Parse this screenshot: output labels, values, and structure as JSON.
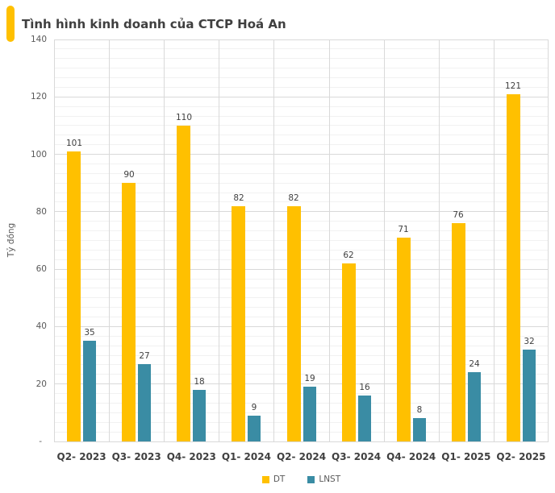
{
  "header": {
    "title": "Tình hình kinh doanh của CTCP Hoá An",
    "accent_color": "#FFC000"
  },
  "chart_data": {
    "type": "bar",
    "title": "Tình hình kinh doanh của CTCP Hoá An",
    "xlabel": "",
    "ylabel": "Tỷ đồng",
    "categories": [
      "Q2- 2023",
      "Q3- 2023",
      "Q4- 2023",
      "Q1- 2024",
      "Q2- 2024",
      "Q3- 2024",
      "Q4- 2024",
      "Q1- 2025",
      "Q2- 2025"
    ],
    "series": [
      {
        "name": "DT",
        "color": "#FFC000",
        "values": [
          101,
          90,
          110,
          82,
          82,
          62,
          71,
          76,
          121
        ]
      },
      {
        "name": "LNST",
        "color": "#3A8CA4",
        "values": [
          35,
          27,
          18,
          9,
          19,
          16,
          8,
          24,
          32
        ]
      }
    ],
    "ylim": [
      0,
      140
    ],
    "y_major_step": 20,
    "y_minor_divisions": 6,
    "y_ticks": [
      {
        "value": 0,
        "label": "-"
      },
      {
        "value": 20,
        "label": "20"
      },
      {
        "value": 40,
        "label": "40"
      },
      {
        "value": 60,
        "label": "60"
      },
      {
        "value": 80,
        "label": "80"
      },
      {
        "value": 100,
        "label": "100"
      },
      {
        "value": 120,
        "label": "120"
      },
      {
        "value": 140,
        "label": "140"
      }
    ],
    "grid": true,
    "data_labels": true,
    "legend_position": "bottom",
    "legend_entries": [
      "DT",
      "LNST"
    ]
  },
  "colors": {
    "background": "#FFFFFF",
    "major_grid": "#D9D9D9",
    "minor_grid": "#F1F1F1",
    "axis_text": "#595959",
    "category_text": "#404040",
    "title_text": "#3F3F3F"
  }
}
